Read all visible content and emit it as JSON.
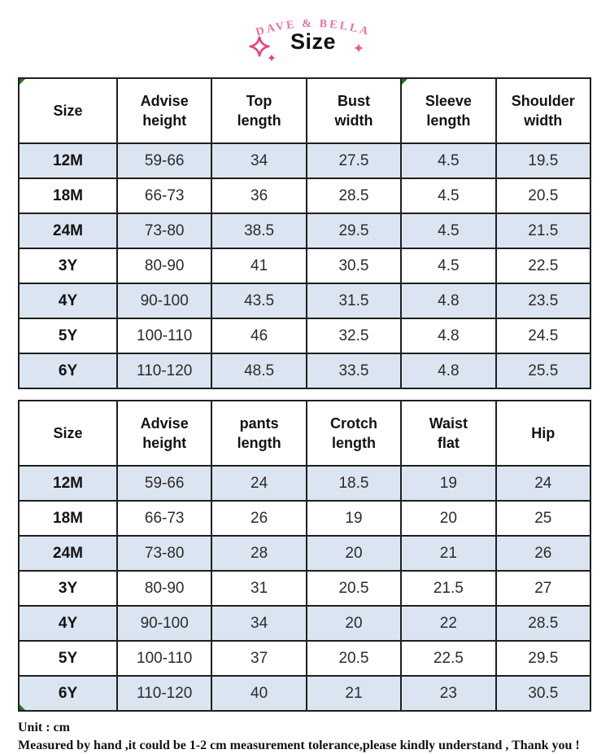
{
  "header": {
    "brand": "DAVE  &  BELLA",
    "title": "Size",
    "accent_pink": "#e8437a",
    "brand_pink": "#ee6f9d"
  },
  "colors": {
    "row_alt_blue": "#dbe5f1",
    "table_border": "#1f1f1f",
    "corner_mark_green": "#1e7a23",
    "title_black": "#111111"
  },
  "tables": [
    {
      "name": "top-measurements",
      "headers": [
        [
          "Size"
        ],
        [
          "Advise",
          "height"
        ],
        [
          "Top",
          "length"
        ],
        [
          "Bust",
          "width"
        ],
        [
          "Sleeve",
          "length"
        ],
        [
          "Shoulder",
          "width"
        ]
      ],
      "rows": [
        [
          "12M",
          "59-66",
          "34",
          "27.5",
          "4.5",
          "19.5"
        ],
        [
          "18M",
          "66-73",
          "36",
          "28.5",
          "4.5",
          "20.5"
        ],
        [
          "24M",
          "73-80",
          "38.5",
          "29.5",
          "4.5",
          "21.5"
        ],
        [
          "3Y",
          "80-90",
          "41",
          "30.5",
          "4.5",
          "22.5"
        ],
        [
          "4Y",
          "90-100",
          "43.5",
          "31.5",
          "4.8",
          "23.5"
        ],
        [
          "5Y",
          "100-110",
          "46",
          "32.5",
          "4.8",
          "24.5"
        ],
        [
          "6Y",
          "110-120",
          "48.5",
          "33.5",
          "4.8",
          "25.5"
        ]
      ]
    },
    {
      "name": "pants-measurements",
      "headers": [
        [
          "Size"
        ],
        [
          "Advise",
          "height"
        ],
        [
          "pants",
          "length"
        ],
        [
          "Crotch",
          "length"
        ],
        [
          "Waist",
          "flat"
        ],
        [
          "Hip"
        ]
      ],
      "rows": [
        [
          "12M",
          "59-66",
          "24",
          "18.5",
          "19",
          "24"
        ],
        [
          "18M",
          "66-73",
          "26",
          "19",
          "20",
          "25"
        ],
        [
          "24M",
          "73-80",
          "28",
          "20",
          "21",
          "26"
        ],
        [
          "3Y",
          "80-90",
          "31",
          "20.5",
          "21.5",
          "27"
        ],
        [
          "4Y",
          "90-100",
          "34",
          "20",
          "22",
          "28.5"
        ],
        [
          "5Y",
          "100-110",
          "37",
          "20.5",
          "22.5",
          "29.5"
        ],
        [
          "6Y",
          "110-120",
          "40",
          "21",
          "23",
          "30.5"
        ]
      ]
    }
  ],
  "footer": {
    "unit": "Unit : cm",
    "note": "Measured by hand ,it could be 1-2 cm measurement tolerance,please kindly understand , Thank you !"
  }
}
